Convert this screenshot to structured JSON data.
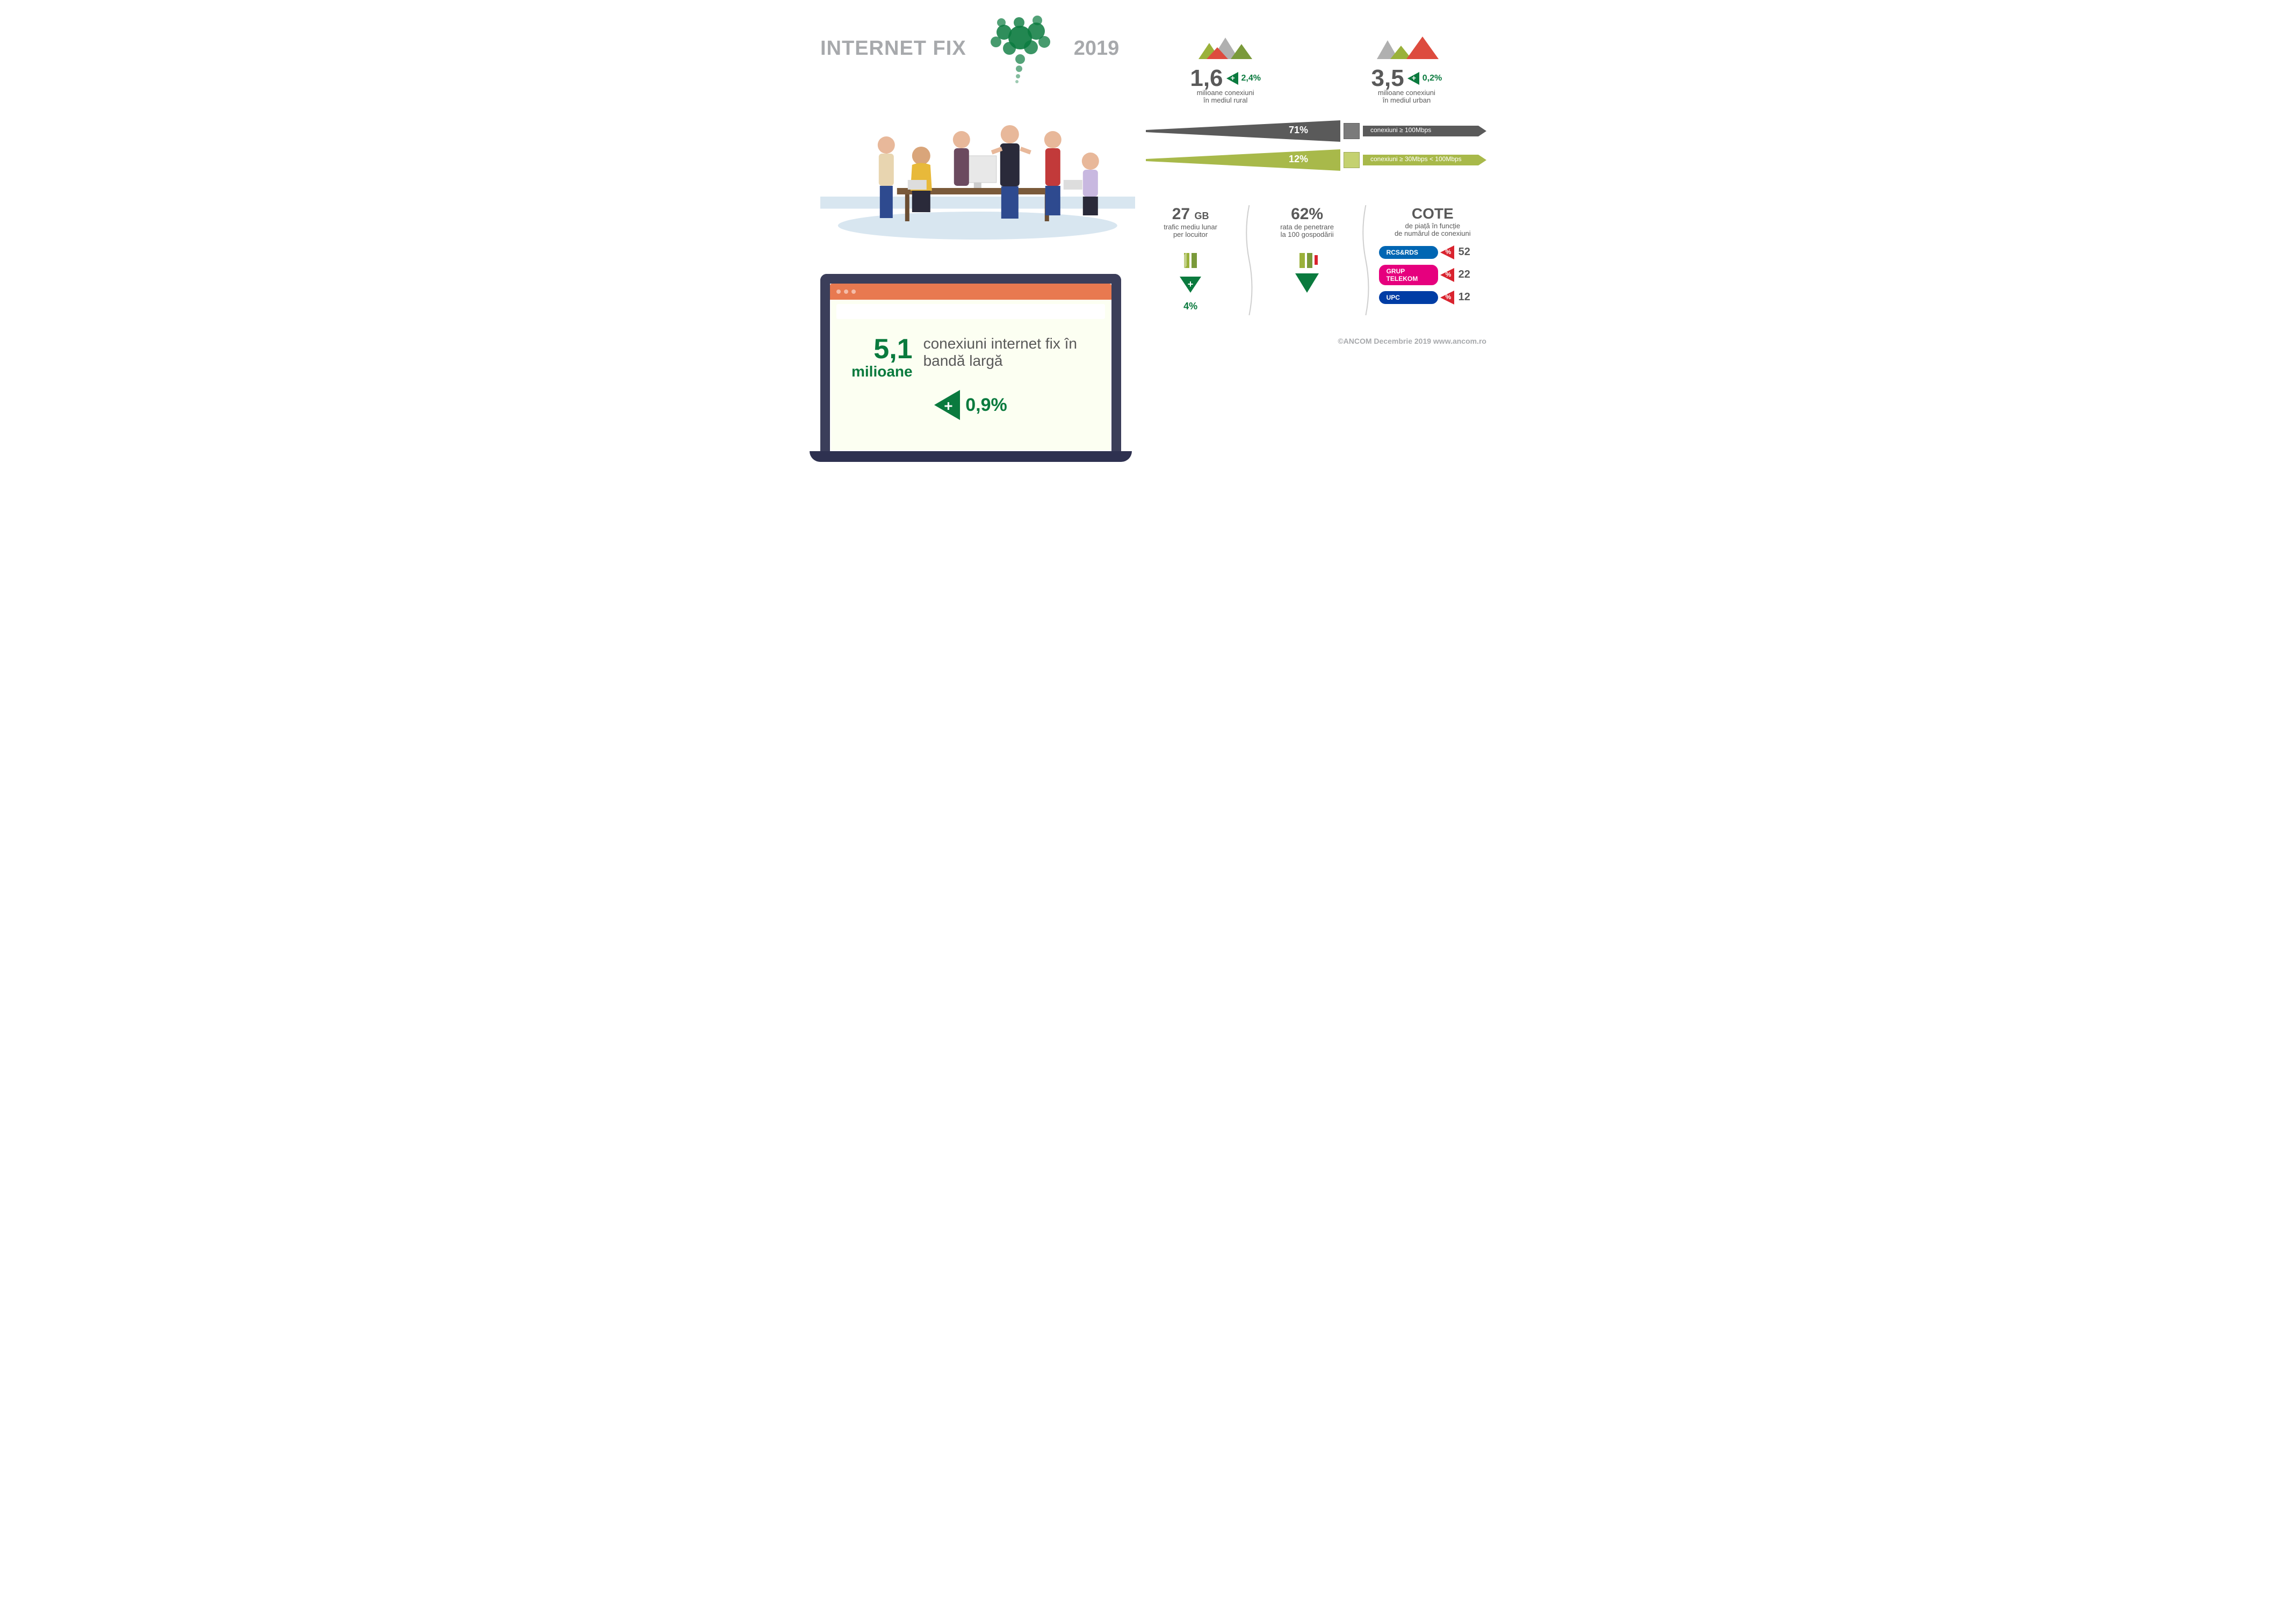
{
  "colors": {
    "green": "#0a7a3e",
    "light_green": "#9ab13a",
    "gray_text": "#595959",
    "light_gray": "#a7a9ac",
    "dark_gray": "#5a5a5a",
    "olive": "#a8b94a",
    "laptop_frame": "#3b3e5a",
    "laptop_bar": "#e87950",
    "rcs_blue": "#0066b3",
    "telekom_pink": "#e6007e",
    "upc_blue": "#003da5",
    "red_tri": "#d9232e",
    "mountain_red": "#dd4b3e",
    "mountain_olive": "#9ab13a",
    "mountain_gray": "#b0b0b0"
  },
  "header": {
    "title": "INTERNET FIX",
    "year": "2019"
  },
  "laptop": {
    "value": "5,1",
    "unit": "milioane",
    "description": "conexiuni internet fix în bandă largă",
    "change": "0,9%"
  },
  "env": {
    "rural": {
      "value": "1,6",
      "change": "2,4%",
      "line1": "milioane conexiuni",
      "line2": "în mediul rural"
    },
    "urban": {
      "value": "3,5",
      "change": "0,2%",
      "line1": "milioane conexiuni",
      "line2": "în mediul urban"
    }
  },
  "speed": {
    "bar1": {
      "pct": "71%",
      "label": "conexiuni ≥ 100Mbps",
      "color": "#5a5a5a"
    },
    "bar2": {
      "pct": "12%",
      "label": "conexiuni ≥ 30Mbps < 100Mbps",
      "color": "#a8b94a"
    }
  },
  "traffic": {
    "value": "27",
    "unit": "GB",
    "line1": "trafic mediu lunar",
    "line2": "per locuitor",
    "change": "4%"
  },
  "penetration": {
    "value": "62%",
    "line1": "rata de penetrare",
    "line2": "la 100 gospodării"
  },
  "cote": {
    "title": "COTE",
    "line1": "de piață în funcție",
    "line2": "de numărul de conexiuni",
    "shares": [
      {
        "name": "RCS&RDS",
        "value": "52",
        "pill_color": "#0066b3",
        "tri_color": "#d9232e"
      },
      {
        "name": "GRUP TELEKOM",
        "value": "22",
        "pill_color": "#e6007e",
        "tri_color": "#d9232e"
      },
      {
        "name": "UPC",
        "value": "12",
        "pill_color": "#003da5",
        "tri_color": "#d9232e"
      }
    ]
  },
  "footer": "©ANCOM Decembrie 2019 www.ancom.ro"
}
